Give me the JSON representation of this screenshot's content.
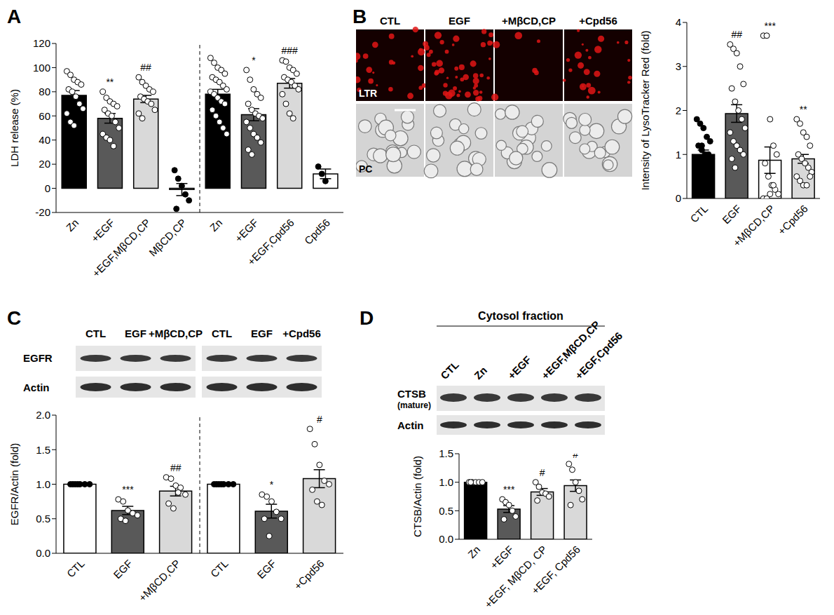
{
  "chart_data": [
    {
      "type": "bar",
      "panel": "A",
      "y_label": "LDH release (%)",
      "ylim": [
        -20,
        120
      ],
      "yticks": [
        -20,
        0,
        20,
        40,
        60,
        80,
        100,
        120
      ],
      "groups": [
        [
          {
            "category": "Zn",
            "value": 77,
            "error": 4,
            "color": "#000000",
            "marker": "open",
            "annotation": null,
            "points": [
              97,
              94,
              90,
              88,
              86,
              82,
              80,
              76,
              70,
              66,
              62,
              55,
              52
            ]
          },
          {
            "category": "+EGF",
            "value": 58,
            "error": 4,
            "color": "#595959",
            "marker": "open",
            "annotation": "**",
            "points": [
              80,
              75,
              72,
              70,
              68,
              65,
              62,
              60,
              55,
              50,
              45,
              42,
              40,
              35
            ]
          },
          {
            "category": "+EGF,MβCD,CP",
            "value": 74,
            "error": 3,
            "color": "#d9d9d9",
            "marker": "open",
            "annotation": "##",
            "points": [
              92,
              88,
              85,
              82,
              80,
              76,
              74,
              72,
              70,
              65,
              62,
              58
            ]
          },
          {
            "category": "MβCD,CP",
            "value": -1,
            "error": 5,
            "color": "#ffffff",
            "marker": "filled",
            "annotation": null,
            "points": [
              15,
              8,
              2,
              -5,
              -10,
              -17
            ]
          }
        ],
        [
          {
            "category": "Zn",
            "value": 78,
            "error": 4,
            "color": "#000000",
            "marker": "open",
            "annotation": null,
            "points": [
              108,
              104,
              100,
              98,
              95,
              92,
              90,
              88,
              85,
              82,
              80,
              78,
              75,
              72,
              70,
              65,
              60,
              55,
              50,
              45
            ]
          },
          {
            "category": "+EGF",
            "value": 61,
            "error": 5,
            "color": "#595959",
            "marker": "open",
            "annotation": "*",
            "points": [
              98,
              90,
              82,
              78,
              75,
              70,
              65,
              62,
              60,
              58,
              55,
              50,
              45,
              42,
              38,
              32,
              28
            ]
          },
          {
            "category": "+EGF,Cpd56",
            "value": 87,
            "error": 4,
            "color": "#d9d9d9",
            "marker": "open",
            "annotation": "###",
            "points": [
              106,
              105,
              100,
              98,
              95,
              92,
              90,
              88,
              85,
              82,
              78,
              70,
              62,
              58
            ]
          },
          {
            "category": "Cpd56",
            "value": 12,
            "error": 4,
            "color": "#ffffff",
            "marker": "filled",
            "annotation": null,
            "points": [
              18,
              12,
              6
            ]
          }
        ]
      ]
    },
    {
      "type": "bar",
      "panel": "B",
      "y_label": "Intensity of LysoTracker Red (fold)",
      "ylim": [
        0,
        4
      ],
      "yticks": [
        0,
        1,
        2,
        3,
        4
      ],
      "groups": [
        [
          {
            "category": "CTL",
            "value": 1.0,
            "error": 0.1,
            "color": "#000000",
            "marker": "filled",
            "annotation": null,
            "points": [
              1.8,
              1.7,
              1.6,
              1.4,
              1.3,
              1.2,
              1.1,
              1.0,
              1.0,
              0.9,
              0.8,
              0.7,
              0.6,
              0.5,
              0.4,
              0.3,
              1.2,
              0.8
            ]
          },
          {
            "category": "EGF",
            "value": 1.93,
            "error": 0.2,
            "color": "#595959",
            "marker": "open",
            "annotation": "##",
            "points": [
              3.5,
              3.4,
              3.3,
              3.0,
              2.6,
              2.5,
              2.2,
              2.0,
              1.8,
              1.6,
              1.5,
              1.3,
              1.2,
              1.1,
              1.0,
              0.9,
              0.7
            ]
          },
          {
            "category": "+MβCD,CP",
            "value": 0.87,
            "error": 0.3,
            "color": "#ffffff",
            "marker": "open",
            "annotation": "***",
            "points": [
              3.7,
              3.7,
              1.8,
              1.2,
              1.0,
              0.8,
              0.5,
              0.3,
              0.2,
              0.1,
              0.0,
              0.0,
              0.1,
              0.3
            ]
          },
          {
            "category": "+Cpd56",
            "value": 0.9,
            "error": 0.1,
            "color": "#d9d9d9",
            "marker": "open",
            "annotation": "**",
            "points": [
              1.8,
              1.7,
              1.5,
              1.4,
              1.2,
              1.0,
              0.9,
              0.8,
              0.7,
              0.6,
              0.5,
              0.4,
              0.3,
              0.3,
              0.5
            ]
          }
        ]
      ]
    },
    {
      "type": "bar",
      "panel": "C",
      "y_label": "EGFR/Actin (fold)",
      "ylim": [
        0,
        2
      ],
      "yticks": [
        {
          "value": 0,
          "label": "0.0"
        },
        {
          "value": 0.5,
          "label": "0.5"
        },
        {
          "value": 1,
          "label": "1.0"
        },
        {
          "value": 1.5,
          "label": "1.5"
        },
        {
          "value": 2,
          "label": "2.0"
        }
      ],
      "groups": [
        [
          {
            "category": "CTL",
            "value": 1.0,
            "error": 0,
            "color": "#ffffff",
            "marker": "filled",
            "annotation": null,
            "points": [
              1.0,
              1.0,
              1.0,
              1.0,
              1.0,
              1.0,
              1.0
            ]
          },
          {
            "category": "EGF",
            "value": 0.62,
            "error": 0.06,
            "color": "#595959",
            "marker": "open",
            "annotation": "***",
            "points": [
              0.78,
              0.75,
              0.62,
              0.58,
              0.55,
              0.5,
              0.47
            ]
          },
          {
            "category": "+MβCD,CP",
            "value": 0.9,
            "error": 0.07,
            "color": "#d9d9d9",
            "marker": "open",
            "annotation": "##",
            "points": [
              1.1,
              1.08,
              0.98,
              0.95,
              0.85,
              0.72,
              0.65,
              0.88
            ]
          }
        ],
        [
          {
            "category": "CTL",
            "value": 1.0,
            "error": 0,
            "color": "#ffffff",
            "marker": "filled",
            "annotation": null,
            "points": [
              1.0,
              1.0,
              1.0,
              1.0,
              1.0,
              1.0,
              1.0
            ]
          },
          {
            "category": "EGF",
            "value": 0.61,
            "error": 0.1,
            "color": "#595959",
            "marker": "open",
            "annotation": "*",
            "points": [
              0.85,
              0.82,
              0.75,
              0.6,
              0.5,
              0.5,
              0.25
            ]
          },
          {
            "category": "+Cpd56",
            "value": 1.08,
            "error": 0.13,
            "color": "#d9d9d9",
            "marker": "open",
            "annotation": "#",
            "points": [
              1.8,
              1.58,
              1.28,
              1.05,
              1.0,
              0.92,
              0.75,
              0.7
            ]
          }
        ]
      ]
    },
    {
      "type": "bar",
      "panel": "D",
      "y_label": "CTSB/Actin (fold)",
      "ylim": [
        0,
        1.5
      ],
      "yticks": [
        {
          "value": 0,
          "label": "0.0"
        },
        {
          "value": 0.5,
          "label": "0.5"
        },
        {
          "value": 1,
          "label": "1.0"
        },
        {
          "value": 1.5,
          "label": "1.5"
        }
      ],
      "groups": [
        [
          {
            "category": "Zn",
            "value": 1.0,
            "error": 0,
            "color": "#000000",
            "marker": "open",
            "annotation": null,
            "points": [
              1.0,
              1.0,
              1.0,
              1.0,
              1.0,
              1.0
            ]
          },
          {
            "category": "+EGF",
            "value": 0.53,
            "error": 0.06,
            "color": "#595959",
            "marker": "open",
            "annotation": "***",
            "points": [
              0.7,
              0.65,
              0.6,
              0.5,
              0.4,
              0.35
            ]
          },
          {
            "category": "+EGF, MβCD, CP",
            "value": 0.83,
            "error": 0.06,
            "color": "#d9d9d9",
            "marker": "open",
            "annotation": "#",
            "points": [
              1.0,
              0.92,
              0.82,
              0.8,
              0.75,
              0.68
            ]
          },
          {
            "category": "+EGF, Cpd56",
            "value": 0.94,
            "error": 0.1,
            "color": "#d9d9d9",
            "marker": "open",
            "annotation": "#",
            "points": [
              1.32,
              1.22,
              1.0,
              0.85,
              0.7,
              0.6
            ]
          }
        ]
      ]
    }
  ],
  "micrographs": {
    "columns": [
      "CTL",
      "EGF",
      "+MβCD,CP",
      "+Cpd56"
    ],
    "rows": [
      "LTR",
      "PC"
    ]
  },
  "blots_C": {
    "lanes": [
      [
        "CTL",
        "EGF",
        "+MβCD,CP"
      ],
      [
        "CTL",
        "EGF",
        "+Cpd56"
      ]
    ],
    "rows": [
      {
        "label": "EGFR"
      },
      {
        "label": "Actin"
      }
    ]
  },
  "blots_D": {
    "title": "Cytosol fraction",
    "lanes": [
      "CTL",
      "Zn",
      "+EGF",
      "+EGF,MβCD,CP",
      "+EGF,Cpd56"
    ],
    "rows": [
      {
        "label": "CTSB",
        "sublabel": "(mature)"
      },
      {
        "label": "Actin"
      }
    ]
  }
}
